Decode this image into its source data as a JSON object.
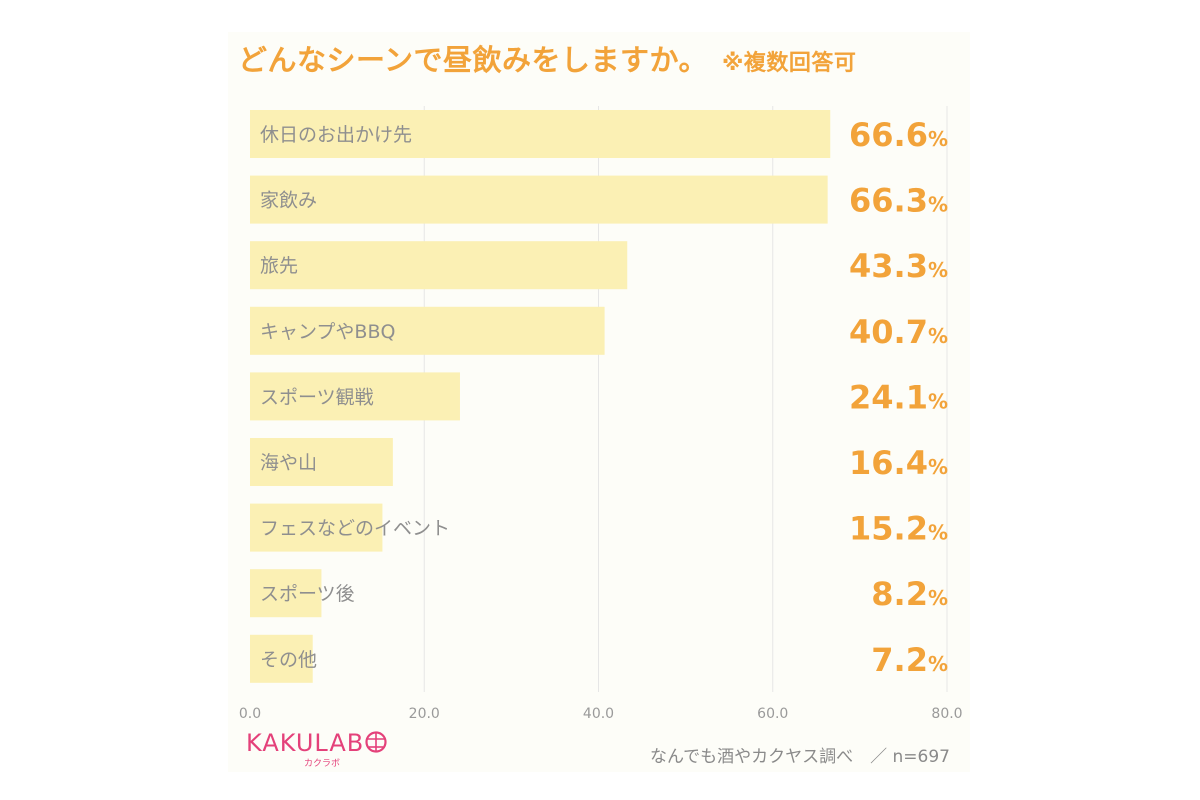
{
  "title": {
    "main": "どんなシーンで昼飲みをしますか。",
    "note": "※複数回答可"
  },
  "chart_data": {
    "type": "bar",
    "orientation": "horizontal",
    "categories": [
      "休日のお出かけ先",
      "家飲み",
      "旅先",
      "キャンプやBBQ",
      "スポーツ観戦",
      "海や山",
      "フェスなどのイベント",
      "スポーツ後",
      "その他"
    ],
    "values": [
      66.6,
      66.3,
      43.3,
      40.7,
      24.1,
      16.4,
      15.2,
      8.2,
      7.2
    ],
    "value_suffix": "%",
    "xlim": [
      0,
      80
    ],
    "xticks": [
      "0.0",
      "20.0",
      "40.0",
      "60.0",
      "80.0"
    ],
    "grid": true,
    "colors": {
      "bar": "#fbf0b4",
      "value": "#f2a33a",
      "label": "#8f8f8f",
      "grid": "#e6e6e6",
      "tick": "#9a9a9a"
    }
  },
  "logo": {
    "text": "KAKULAB",
    "sub": "カクラボ"
  },
  "credit": "なんでも酒やカクヤス調べ　／ n=697"
}
